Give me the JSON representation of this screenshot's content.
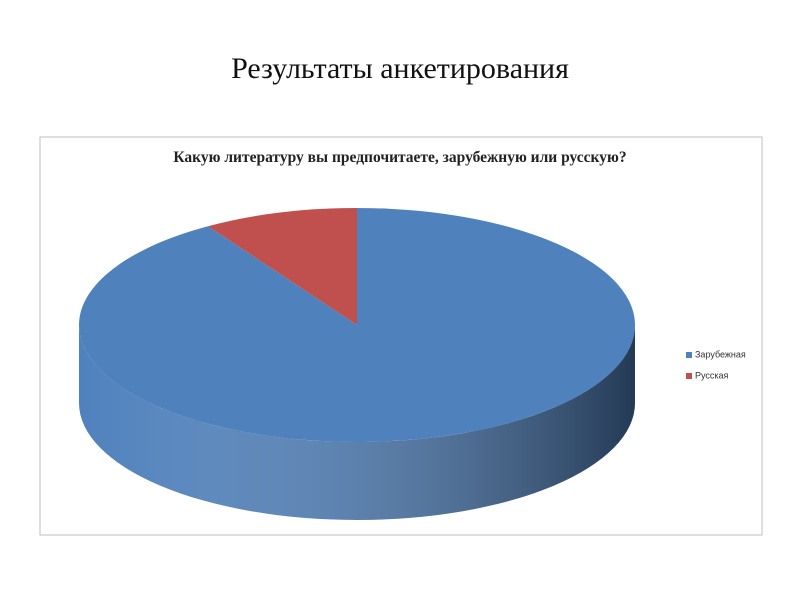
{
  "slide_title": "Результаты анкетирования",
  "chart_data": {
    "type": "pie3d",
    "title": "Какую литературу вы предпочитаете, зарубежную или русскую?",
    "categories": [
      "Зарубежная",
      "Русская"
    ],
    "values": [
      91,
      9
    ],
    "colors": [
      "#4f81bd",
      "#c0504d"
    ],
    "legend": "right"
  }
}
